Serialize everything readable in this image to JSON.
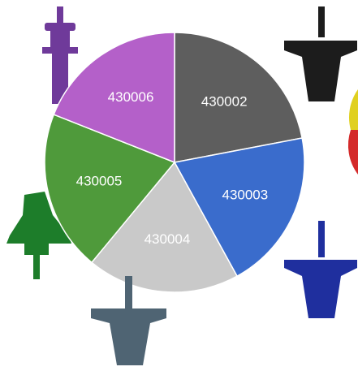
{
  "chart_data": {
    "type": "pie",
    "categories": [
      "430002",
      "430003",
      "430004",
      "430005",
      "430006"
    ],
    "values": [
      22,
      20,
      19,
      20,
      19
    ],
    "colors": [
      "#5e5e5e",
      "#3a6ccc",
      "#c9c9c9",
      "#4f9a3b",
      "#b460c9"
    ]
  }
}
